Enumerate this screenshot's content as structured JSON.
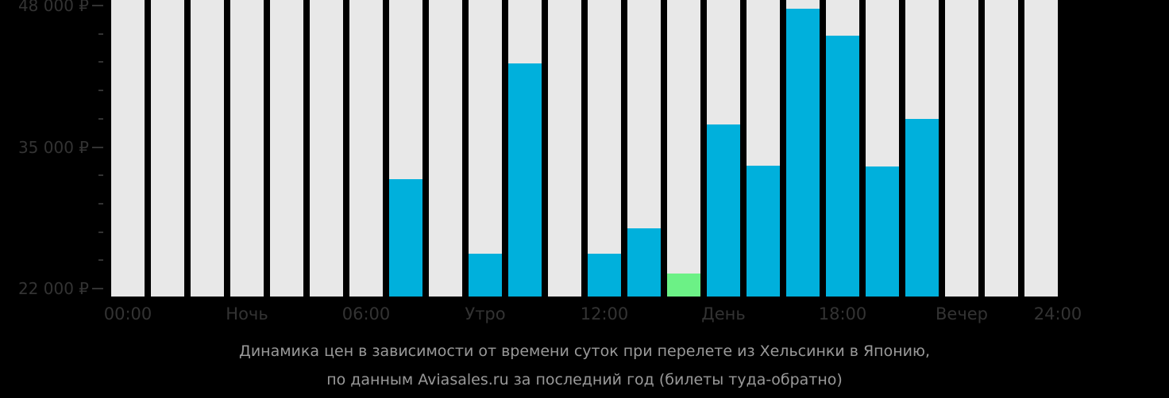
{
  "chart_data": {
    "type": "bar",
    "title": "Динамика цен в зависимости от времени суток при перелете из Хельсинки в Японию, по данным Aviasales.ru за последний год (билеты туда-обратно)",
    "xlabel": "",
    "ylabel": "",
    "ylim": [
      22000,
      48000
    ],
    "y_ticks": [
      "22 000 ₽",
      "35 000 ₽",
      "48 000 ₽"
    ],
    "y_tick_values": [
      22000,
      35000,
      48000
    ],
    "x_tick_labels": [
      {
        "label": "00:00",
        "pos": 0
      },
      {
        "label": "Ночь",
        "pos": 3
      },
      {
        "label": "06:00",
        "pos": 6
      },
      {
        "label": "Утро",
        "pos": 9
      },
      {
        "label": "12:00",
        "pos": 12
      },
      {
        "label": "День",
        "pos": 15
      },
      {
        "label": "18:00",
        "pos": 18
      },
      {
        "label": "Вечер",
        "pos": 21
      },
      {
        "label": "24:00",
        "pos": 24
      }
    ],
    "categories": [
      "00",
      "01",
      "02",
      "03",
      "04",
      "05",
      "06",
      "07",
      "08",
      "09",
      "10",
      "11",
      "12",
      "13",
      "14",
      "15",
      "16",
      "17",
      "18",
      "19",
      "20",
      "21",
      "22",
      "23"
    ],
    "values": [
      null,
      null,
      null,
      null,
      null,
      null,
      null,
      32050,
      null,
      25200,
      42700,
      null,
      25200,
      27500,
      23400,
      37100,
      33300,
      47700,
      45200,
      33200,
      37600,
      null,
      null,
      null
    ],
    "highlight_min_index": 14,
    "colors": {
      "bar": "#00b0dc",
      "min_bar": "#6cf186",
      "empty": "#e8e8e8",
      "background": "#000000",
      "axis_text": "#333333",
      "caption": "#999999"
    },
    "grid": false,
    "legend": null
  },
  "caption": {
    "line1": "Динамика цен в зависимости от времени суток при перелете из Хельсинки в Японию,",
    "line2": "по данным Aviasales.ru за последний год (билеты туда-обратно)"
  }
}
